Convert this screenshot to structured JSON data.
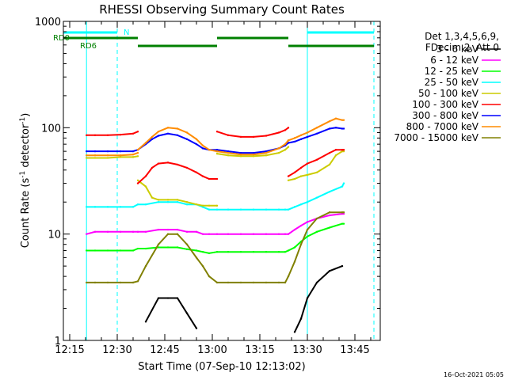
{
  "chart_data": {
    "type": "line",
    "title": "RHESSI Observing Summary Count Rates",
    "xlabel": "Start Time (07-Sep-10 12:13:02)",
    "ylabel_main": "Count Rate (s",
    "ylabel_sup1": "-1",
    "ylabel_mid": " detector",
    "ylabel_sup2": "-1",
    "ylabel_end": ")",
    "footer_date": "16-Oct-2021 05:05",
    "x_unit": "minutes since 12:13",
    "xlim": [
      0,
      100
    ],
    "ylim": [
      1,
      1000
    ],
    "y_scale": "log",
    "x_ticks": [
      {
        "value": 2,
        "label": "12:15"
      },
      {
        "value": 17,
        "label": "12:30"
      },
      {
        "value": 32,
        "label": "12:45"
      },
      {
        "value": 47,
        "label": "13:00"
      },
      {
        "value": 62,
        "label": "13:15"
      },
      {
        "value": 77,
        "label": "13:30"
      },
      {
        "value": 92,
        "label": "13:45"
      }
    ],
    "y_ticks": [
      {
        "value": 1,
        "label": "1"
      },
      {
        "value": 10,
        "label": "10"
      },
      {
        "value": 100,
        "label": "100"
      },
      {
        "value": 1000,
        "label": "1000"
      }
    ],
    "legend_header": [
      "Det 1,3,4,5,6,9,",
      "FDecim 2, Att 0"
    ],
    "legend_placement": "right",
    "series": [
      {
        "name": "3 - 6 keV",
        "color": "#000000",
        "x": [
          7.3,
          10,
          14,
          18,
          22,
          23.5,
          26,
          30,
          33,
          36,
          39,
          42,
          44,
          46,
          48.5,
          52,
          56,
          60,
          64,
          68,
          70,
          71,
          73,
          75,
          77,
          80,
          84,
          88,
          88.5
        ],
        "y": [
          null,
          null,
          null,
          null,
          null,
          null,
          1.5,
          2.5,
          2.5,
          2.5,
          1.8,
          1.3,
          null,
          null,
          null,
          null,
          null,
          null,
          null,
          null,
          null,
          null,
          1.2,
          1.6,
          2.5,
          3.5,
          4.5,
          5,
          null
        ]
      },
      {
        "name": "6 - 12 keV",
        "color": "#ff00ff",
        "x": [
          7.3,
          10,
          14,
          18,
          22,
          23.5,
          26,
          30,
          33,
          36,
          39,
          42,
          44,
          46,
          48.5,
          52,
          56,
          60,
          64,
          68,
          70,
          71,
          73,
          75,
          77,
          80,
          84,
          88,
          88.5
        ],
        "y": [
          10,
          10.5,
          10.5,
          10.5,
          10.5,
          10.5,
          10.5,
          11,
          11,
          11,
          10.5,
          10.5,
          10,
          10,
          10,
          10,
          10,
          10,
          10,
          10,
          10,
          10,
          11,
          12,
          13,
          14,
          15,
          15.5,
          15.5
        ]
      },
      {
        "name": "12 - 25 keV",
        "color": "#00ff00",
        "x": [
          7.3,
          10,
          14,
          18,
          22,
          23.5,
          26,
          30,
          33,
          36,
          39,
          42,
          44,
          46,
          48.5,
          52,
          56,
          60,
          64,
          68,
          70,
          71,
          73,
          75,
          77,
          80,
          84,
          88,
          88.5
        ],
        "y": [
          7,
          7,
          7,
          7,
          7,
          7.3,
          7.3,
          7.5,
          7.5,
          7.5,
          7.2,
          7,
          6.8,
          6.6,
          6.8,
          6.8,
          6.8,
          6.8,
          6.8,
          6.8,
          6.8,
          7,
          7.5,
          8.5,
          9.5,
          10.5,
          11.5,
          12.5,
          12.5
        ]
      },
      {
        "name": "25 - 50 keV",
        "color": "#00ffff",
        "x": [
          7.3,
          10,
          14,
          18,
          22,
          23.5,
          26,
          30,
          33,
          36,
          39,
          42,
          44,
          46,
          48.5,
          52,
          56,
          60,
          64,
          68,
          70,
          71,
          73,
          75,
          77,
          80,
          84,
          88,
          88.5
        ],
        "y": [
          18,
          18,
          18,
          18,
          18,
          19,
          19,
          20,
          20,
          20,
          19,
          19,
          18,
          17,
          17,
          17,
          17,
          17,
          17,
          17,
          17,
          17,
          18,
          19,
          20,
          22,
          25,
          28,
          30
        ]
      },
      {
        "name": "50 - 100 keV",
        "color": "#cccc00",
        "x": [
          7.3,
          10,
          14,
          18,
          22,
          23.5,
          26,
          30,
          33,
          36,
          39,
          42,
          44,
          46,
          48.5,
          52,
          56,
          60,
          64,
          68,
          70,
          71,
          73,
          75,
          77,
          80,
          84,
          88,
          88.5
        ],
        "y": [
          52,
          52,
          52,
          53,
          53,
          54,
          null,
          null,
          null,
          null,
          null,
          null,
          null,
          null,
          null,
          null,
          null,
          null,
          null,
          null,
          null,
          null,
          null,
          null,
          null,
          null,
          null,
          null,
          null
        ]
      },
      {
        "name": "100 - 300 keV",
        "color": "#ff0000",
        "x": [
          7.3,
          10,
          14,
          18,
          22,
          23.5,
          26,
          30,
          33,
          36,
          39,
          42,
          44,
          46,
          48.5,
          52,
          56,
          60,
          64,
          68,
          70,
          71,
          73,
          75,
          77,
          80,
          84,
          88,
          88.5
        ],
        "y": [
          85,
          85,
          85,
          86,
          88,
          92,
          null,
          null,
          null,
          null,
          null,
          null,
          null,
          null,
          null,
          null,
          null,
          null,
          null,
          null,
          null,
          null,
          null,
          null,
          null,
          null,
          null,
          null,
          null
        ]
      },
      {
        "name": "300 - 800 keV",
        "color": "#0000ff",
        "x": [
          7.3,
          10,
          14,
          18,
          22,
          23.5,
          26,
          30,
          33,
          36,
          39,
          42,
          44,
          46,
          48.5,
          52,
          56,
          60,
          64,
          68,
          70,
          71,
          73,
          75,
          77,
          80,
          84,
          88,
          88.5
        ],
        "y": [
          60,
          60,
          60,
          60,
          60,
          62,
          null,
          null,
          null,
          null,
          null,
          null,
          null,
          null,
          null,
          null,
          null,
          null,
          null,
          null,
          null,
          null,
          null,
          null,
          null,
          null,
          null,
          null,
          null
        ]
      },
      {
        "name": "800 - 7000 keV",
        "color": "#ff8c00",
        "x": [
          7.3,
          10,
          14,
          18,
          22,
          23.5,
          26,
          30,
          33,
          36,
          39,
          42,
          44,
          46,
          48.5,
          52,
          56,
          60,
          64,
          68,
          70,
          71,
          73,
          75,
          77,
          80,
          84,
          88,
          88.5
        ],
        "y": [
          55,
          55,
          55,
          55,
          56,
          58,
          null,
          null,
          null,
          null,
          null,
          null,
          null,
          null,
          null,
          null,
          null,
          null,
          null,
          null,
          null,
          null,
          null,
          null,
          null,
          null,
          null,
          null,
          null
        ]
      },
      {
        "name": "7000 - 15000 keV",
        "color": "#808000",
        "x": [
          7.3,
          10,
          14,
          18,
          22,
          23.5,
          26,
          30,
          33,
          36,
          39,
          42,
          44,
          46,
          48.5,
          52,
          56,
          60,
          64,
          68,
          70,
          71,
          73,
          75,
          77,
          80,
          84,
          88,
          88.5
        ],
        "y": [
          3.5,
          3.5,
          3.5,
          3.5,
          3.5,
          3.6,
          5,
          8,
          10,
          10,
          8,
          6,
          5,
          4,
          3.5,
          3.5,
          3.5,
          3.5,
          3.5,
          3.5,
          3.5,
          4,
          5.5,
          8,
          11,
          14,
          16,
          16,
          16
        ]
      }
    ],
    "series_b": [
      {
        "name": "50 - 100 keV",
        "color": "#cccc00",
        "x": [
          23.5,
          26,
          28,
          30,
          33,
          36,
          39,
          42,
          44,
          46,
          48.5
        ],
        "y": [
          32,
          28,
          22,
          21,
          21,
          21,
          20,
          19,
          18.5,
          18.5,
          18.5
        ]
      },
      {
        "name": "50 - 100 keV",
        "color": "#cccc00",
        "x": [
          48.5,
          52,
          56,
          60,
          64,
          68,
          70,
          71
        ],
        "y": [
          57,
          55,
          54,
          54,
          55,
          58,
          62,
          66
        ]
      },
      {
        "name": "50 - 100 keV",
        "color": "#cccc00",
        "x": [
          71,
          73,
          75,
          77,
          80,
          84,
          86,
          88,
          88.5
        ],
        "y": [
          32,
          33,
          35,
          36,
          38,
          45,
          55,
          60,
          60
        ]
      },
      {
        "name": "100 - 300 keV",
        "color": "#ff0000",
        "x": [
          23.5,
          26,
          28,
          30,
          33,
          36,
          39,
          42,
          44,
          46,
          48.5
        ],
        "y": [
          30,
          35,
          42,
          46,
          47,
          45,
          42,
          38,
          35,
          33,
          33
        ]
      },
      {
        "name": "100 - 300 keV",
        "color": "#ff0000",
        "x": [
          48.5,
          52,
          56,
          60,
          64,
          68,
          70,
          71
        ],
        "y": [
          92,
          85,
          82,
          82,
          84,
          90,
          95,
          100
        ]
      },
      {
        "name": "100 - 300 keV",
        "color": "#ff0000",
        "x": [
          71,
          73,
          75,
          77,
          80,
          84,
          86,
          88,
          88.5
        ],
        "y": [
          35,
          38,
          42,
          46,
          50,
          58,
          62,
          62,
          62
        ]
      },
      {
        "name": "300 - 800 keV",
        "color": "#0000ff",
        "x": [
          23.5,
          26,
          28,
          30,
          33,
          36,
          39,
          42,
          44,
          46,
          48.5
        ],
        "y": [
          62,
          70,
          78,
          84,
          88,
          85,
          78,
          70,
          64,
          62,
          62
        ]
      },
      {
        "name": "300 - 800 keV",
        "color": "#0000ff",
        "x": [
          48.5,
          52,
          56,
          60,
          64,
          68,
          70,
          71
        ],
        "y": [
          62,
          60,
          58,
          58,
          60,
          64,
          68,
          72
        ]
      },
      {
        "name": "300 - 800 keV",
        "color": "#0000ff",
        "x": [
          71,
          73,
          75,
          77,
          80,
          84,
          86,
          88,
          88.5
        ],
        "y": [
          72,
          74,
          78,
          82,
          88,
          98,
          100,
          98,
          98
        ]
      },
      {
        "name": "800 - 7000 keV",
        "color": "#ff8c00",
        "x": [
          23.5,
          26,
          28,
          30,
          33,
          36,
          39,
          42,
          44,
          46,
          48.5
        ],
        "y": [
          62,
          72,
          82,
          92,
          100,
          98,
          90,
          78,
          68,
          62,
          60
        ]
      },
      {
        "name": "800 - 7000 keV",
        "color": "#ff8c00",
        "x": [
          48.5,
          52,
          56,
          60,
          64,
          68,
          70,
          71
        ],
        "y": [
          60,
          58,
          56,
          56,
          58,
          64,
          70,
          76
        ]
      },
      {
        "name": "800 - 7000 keV",
        "color": "#ff8c00",
        "x": [
          71,
          73,
          75,
          77,
          80,
          84,
          86,
          88,
          88.5
        ],
        "y": [
          76,
          80,
          85,
          90,
          100,
          115,
          122,
          118,
          118
        ]
      }
    ],
    "flags": [
      {
        "name": "RD0",
        "label": "RD0",
        "color": "#008000",
        "segments": [
          [
            0,
            23.5
          ],
          [
            48.5,
            71
          ]
        ]
      },
      {
        "name": "RD6",
        "label": "RD6",
        "color": "#008000",
        "segments": [
          [
            23.5,
            48.5
          ],
          [
            71,
            98
          ]
        ]
      },
      {
        "name": "N",
        "label": "N",
        "color": "#00ffff",
        "segments": [
          [
            0,
            17
          ],
          [
            77,
            98
          ]
        ]
      }
    ],
    "vertical_lines": [
      {
        "x": 7.3,
        "style": "solid",
        "color": "#00ffff"
      },
      {
        "x": 17,
        "style": "dashed",
        "color": "#00ffff"
      },
      {
        "x": 77,
        "style": "solid",
        "color": "#00ffff"
      },
      {
        "x": 98,
        "style": "dashed",
        "color": "#00ffff"
      }
    ]
  }
}
